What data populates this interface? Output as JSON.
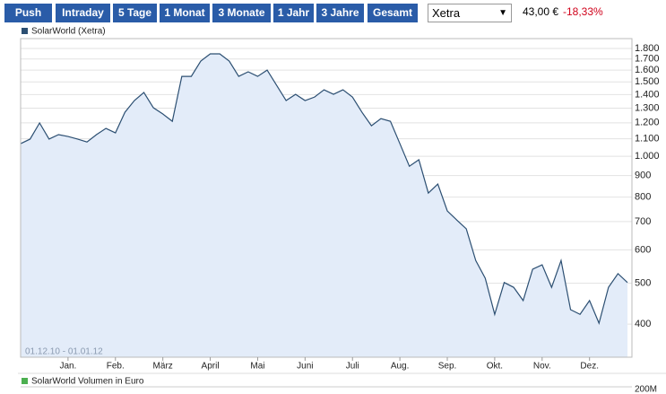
{
  "toolbar": {
    "buttons": [
      "Push",
      "Intraday",
      "5 Tage",
      "1 Monat",
      "3 Monate",
      "1 Jahr",
      "3 Jahre",
      "Gesamt"
    ],
    "exchange": "Xetra",
    "price": "43,00 €",
    "change": "-18,33%"
  },
  "chart_data": {
    "type": "line",
    "yscale": "log",
    "grid": true,
    "date_range": "01.12.10 - 01.01.12",
    "categories": [
      null,
      null,
      null,
      null,
      null,
      "Jan.",
      null,
      null,
      null,
      null,
      "Feb.",
      null,
      null,
      null,
      null,
      "März",
      null,
      null,
      null,
      null,
      "April",
      null,
      null,
      null,
      null,
      "Mai",
      null,
      null,
      null,
      null,
      "Juni",
      null,
      null,
      null,
      null,
      "Juli",
      null,
      null,
      null,
      null,
      "Aug.",
      null,
      null,
      null,
      null,
      "Sep.",
      null,
      null,
      null,
      null,
      "Okt.",
      null,
      null,
      null,
      null,
      "Nov.",
      null,
      null,
      null,
      null,
      "Dez.",
      null,
      null,
      null,
      null
    ],
    "series": [
      {
        "name": "SolarWorld (Xetra)",
        "color": "#2c4f72",
        "values": [
          1071,
          1098,
          1199,
          1098,
          1125,
          1114,
          1098,
          1081,
          1125,
          1164,
          1136,
          1271,
          1355,
          1416,
          1303,
          1259,
          1210,
          1546,
          1546,
          1681,
          1748,
          1748,
          1681,
          1546,
          1585,
          1546,
          1600,
          1472,
          1355,
          1402,
          1355,
          1381,
          1437,
          1402,
          1437,
          1381,
          1271,
          1181,
          1228,
          1210,
          1071,
          947,
          981,
          818,
          859,
          742,
          706,
          673,
          566,
          514,
          422,
          502,
          489,
          455,
          540,
          553,
          489,
          566,
          433,
          422,
          455,
          402,
          489,
          527,
          502
        ]
      }
    ],
    "ylim": [
      334,
      1900
    ],
    "yticks": [
      400,
      500,
      600,
      700,
      800,
      900,
      {
        "value": 1000,
        "label": "1.000"
      },
      {
        "value": 1100,
        "label": "1.100"
      },
      {
        "value": 1200,
        "label": "1.200"
      },
      {
        "value": 1300,
        "label": "1.300"
      },
      {
        "value": 1400,
        "label": "1.400"
      },
      {
        "value": 1500,
        "label": "1.500"
      },
      {
        "value": 1600,
        "label": "1.600"
      },
      {
        "value": 1700,
        "label": "1.700"
      },
      {
        "value": 1800,
        "label": "1.800"
      }
    ],
    "volume": {
      "name": "SolarWorld Volumen in Euro",
      "color": "#4caf50",
      "tick_label": "200M"
    }
  }
}
